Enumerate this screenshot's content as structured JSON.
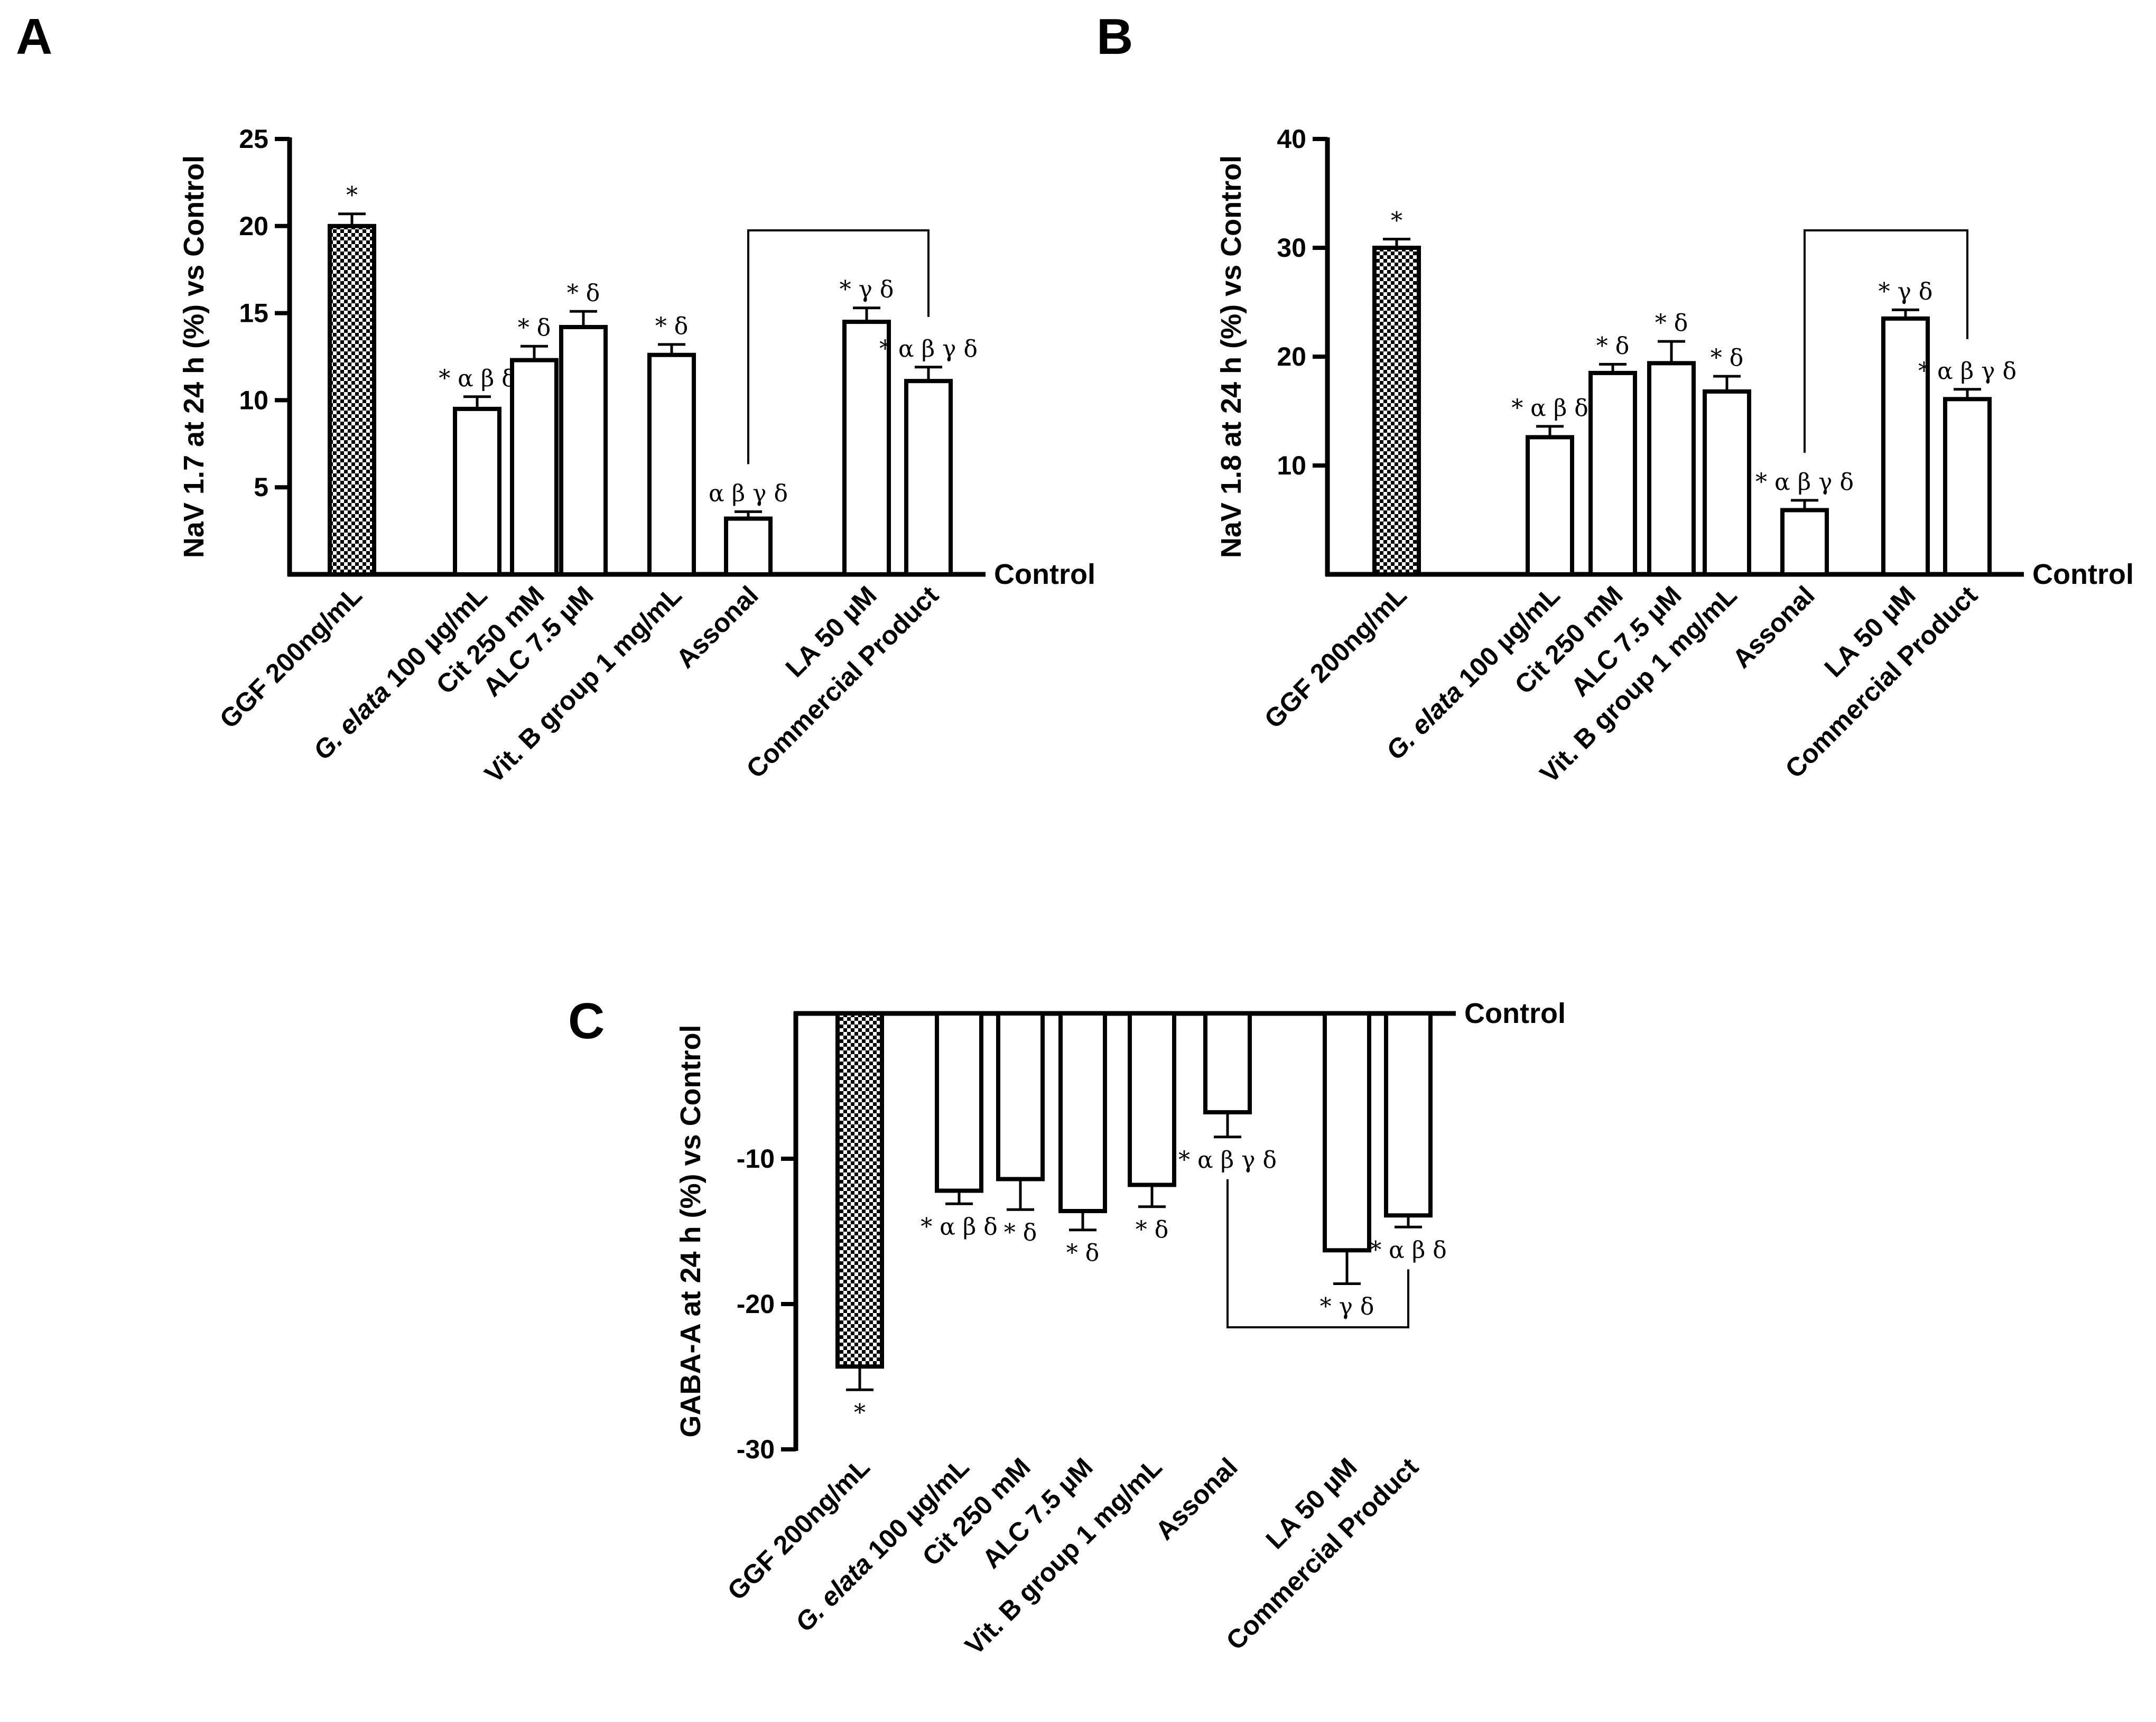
{
  "figure": {
    "panels": [
      "A",
      "B",
      "C"
    ],
    "control_label": "Control"
  },
  "chart_data": [
    {
      "panel": "A",
      "type": "bar",
      "title": "",
      "xlabel": "",
      "ylabel": "NaV 1.7 at 24 h (%) vs Control",
      "ylim": [
        0,
        25
      ],
      "yticks": [
        5,
        10,
        15,
        20,
        25
      ],
      "categories": [
        {
          "prefix": "GGF 200ng/mL",
          "italic": "",
          "suffix": ""
        },
        {
          "prefix": "",
          "italic": "G. elata",
          "suffix": " 100 µg/mL"
        },
        {
          "prefix": "Cit 250 mM",
          "italic": "",
          "suffix": ""
        },
        {
          "prefix": "ALC 7.5 µM",
          "italic": "",
          "suffix": ""
        },
        {
          "prefix": "Vit. B group 1 mg/mL",
          "italic": "",
          "suffix": ""
        },
        {
          "prefix": "Assonal",
          "italic": "",
          "suffix": ""
        },
        {
          "prefix": "LA 50 µM",
          "italic": "",
          "suffix": ""
        },
        {
          "prefix": "Commercial Product",
          "italic": "",
          "suffix": ""
        }
      ],
      "values": [
        20.0,
        9.5,
        12.3,
        14.2,
        12.6,
        3.2,
        14.5,
        11.1
      ],
      "errors": [
        0.7,
        0.7,
        0.8,
        0.9,
        0.6,
        0.4,
        0.8,
        0.8
      ],
      "significance": [
        "*",
        "* α β δ",
        "* δ",
        "* δ",
        "* δ",
        "α β γ δ",
        "* γ δ",
        "* α β γ δ"
      ],
      "patterned": [
        true,
        false,
        false,
        false,
        false,
        false,
        false,
        false
      ],
      "bracket": [
        5,
        7
      ]
    },
    {
      "panel": "B",
      "type": "bar",
      "title": "",
      "xlabel": "",
      "ylabel": "NaV 1.8 at 24 h (%) vs Control",
      "ylim": [
        0,
        40
      ],
      "yticks": [
        10,
        20,
        30,
        40
      ],
      "categories": [
        {
          "prefix": "GGF 200ng/mL",
          "italic": "",
          "suffix": ""
        },
        {
          "prefix": "",
          "italic": "G. elata",
          "suffix": " 100 µg/mL"
        },
        {
          "prefix": "Cit 250 mM",
          "italic": "",
          "suffix": ""
        },
        {
          "prefix": "ALC 7.5 µM",
          "italic": "",
          "suffix": ""
        },
        {
          "prefix": "Vit. B group 1 mg/mL",
          "italic": "",
          "suffix": ""
        },
        {
          "prefix": "Assonal",
          "italic": "",
          "suffix": ""
        },
        {
          "prefix": "LA 50 µM",
          "italic": "",
          "suffix": ""
        },
        {
          "prefix": "Commercial Product",
          "italic": "",
          "suffix": ""
        }
      ],
      "values": [
        30.0,
        12.6,
        18.5,
        19.4,
        16.8,
        5.9,
        23.5,
        16.1
      ],
      "errors": [
        0.8,
        1.0,
        0.8,
        2.0,
        1.4,
        0.9,
        0.8,
        0.9
      ],
      "significance": [
        "*",
        "* α β δ",
        "* δ",
        "* δ",
        "* δ",
        "* α β γ δ",
        "* γ δ",
        "* α β γ δ"
      ],
      "patterned": [
        true,
        false,
        false,
        false,
        false,
        false,
        false,
        false
      ],
      "bracket": [
        5,
        7
      ]
    },
    {
      "panel": "C",
      "type": "bar",
      "title": "",
      "xlabel": "",
      "ylabel": "GABA-A at 24 h (%) vs Control",
      "ylim": [
        -30,
        0
      ],
      "yticks": [
        -10,
        -20,
        -30
      ],
      "categories": [
        {
          "prefix": "GGF 200ng/mL",
          "italic": "",
          "suffix": ""
        },
        {
          "prefix": "",
          "italic": "G. elata",
          "suffix": " 100 µg/mL"
        },
        {
          "prefix": "Cit 250 mM",
          "italic": "",
          "suffix": ""
        },
        {
          "prefix": "ALC 7.5 µM",
          "italic": "",
          "suffix": ""
        },
        {
          "prefix": "Vit. B group 1 mg/mL",
          "italic": "",
          "suffix": ""
        },
        {
          "prefix": "Assonal",
          "italic": "",
          "suffix": ""
        },
        {
          "prefix": "LA 50 µM",
          "italic": "",
          "suffix": ""
        },
        {
          "prefix": "Commercial Product",
          "italic": "",
          "suffix": ""
        }
      ],
      "values": [
        -24.3,
        -12.2,
        -11.4,
        -13.6,
        -11.8,
        -6.8,
        -16.3,
        -13.9
      ],
      "errors": [
        1.6,
        0.9,
        2.1,
        1.3,
        1.5,
        1.7,
        2.3,
        0.8
      ],
      "significance": [
        "*",
        "* α β δ",
        "* δ",
        "* δ",
        "* δ",
        "* α β γ δ",
        "* γ δ",
        "* α β δ"
      ],
      "patterned": [
        true,
        false,
        false,
        false,
        false,
        false,
        false,
        false
      ],
      "bracket": [
        5,
        7
      ]
    }
  ]
}
